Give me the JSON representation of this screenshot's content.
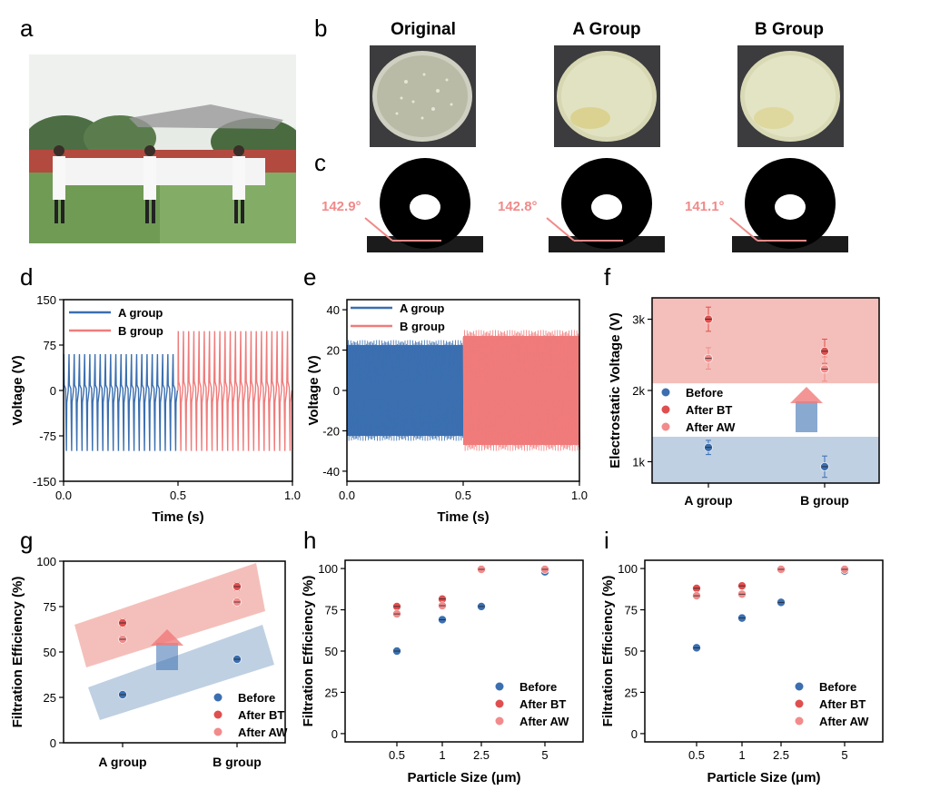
{
  "panels": {
    "a": "a",
    "b": "b",
    "c": "c",
    "d": "d",
    "e": "e",
    "f": "f",
    "g": "g",
    "h": "h",
    "i": "i"
  },
  "petri_titles": [
    "Original",
    "A Group",
    "B Group"
  ],
  "contact_angles": [
    "142.9°",
    "142.8°",
    "141.1°"
  ],
  "colors": {
    "blue": "#3b6fb0",
    "red": "#f07b7b",
    "blueBand": "#b8cbe0",
    "redBand": "#f3b8b2"
  },
  "chart_data": [
    {
      "id": "d",
      "type": "line",
      "xlabel": "Time (s)",
      "ylabel": "Voltage (V)",
      "xlim": [
        0,
        1
      ],
      "ylim": [
        -150,
        150
      ],
      "xticks": [
        "0.0",
        "0.5",
        "1.0"
      ],
      "yticks": [
        "150",
        "75",
        "0",
        "-75",
        "-150"
      ],
      "series": [
        {
          "name": "A group",
          "x_range": [
            0,
            0.5
          ],
          "peak_pos": 60,
          "peak_neg": -100,
          "cycles": 22
        },
        {
          "name": "B group",
          "x_range": [
            0.5,
            1.0
          ],
          "peak_pos": 98,
          "peak_neg": -100,
          "cycles": 22
        }
      ]
    },
    {
      "id": "e",
      "type": "line",
      "xlabel": "Time (s)",
      "ylabel": "Voltage (V)",
      "xlim": [
        0,
        1
      ],
      "ylim": [
        -45,
        45
      ],
      "xticks": [
        "0.0",
        "0.5",
        "1.0"
      ],
      "yticks": [
        "40",
        "20",
        "0",
        "-20",
        "-40"
      ],
      "series": [
        {
          "name": "A group",
          "x_range": [
            0,
            0.5
          ],
          "amplitude": 25
        },
        {
          "name": "B group",
          "x_range": [
            0.5,
            1.0
          ],
          "amplitude": 30
        }
      ]
    },
    {
      "id": "f",
      "type": "scatter",
      "xlabel": "",
      "ylabel": "Electrostatic Voltage (V)",
      "categories": [
        "A group",
        "B group"
      ],
      "ylim": [
        700,
        3300
      ],
      "yticks": [
        "3k",
        "2k",
        "1k"
      ],
      "series": [
        {
          "name": "Before",
          "values": [
            1200,
            930
          ],
          "errors": [
            100,
            150
          ]
        },
        {
          "name": "After BT",
          "values": [
            3000,
            2550
          ],
          "errors": [
            170,
            170
          ]
        },
        {
          "name": "After AW",
          "values": [
            2450,
            2300
          ],
          "errors": [
            150,
            170
          ]
        }
      ]
    },
    {
      "id": "g",
      "type": "scatter",
      "xlabel": "",
      "ylabel": "Filtration Efficiency (%)",
      "categories": [
        "A group",
        "B group"
      ],
      "ylim": [
        0,
        100
      ],
      "yticks": [
        "100",
        "75",
        "50",
        "25",
        "0"
      ],
      "series": [
        {
          "name": "Before",
          "values": [
            26.5,
            46
          ],
          "errors": [
            1,
            1
          ]
        },
        {
          "name": "After BT",
          "values": [
            66,
            86
          ],
          "errors": [
            2,
            2
          ]
        },
        {
          "name": "After AW",
          "values": [
            57,
            77.5
          ],
          "errors": [
            2,
            2
          ]
        }
      ]
    },
    {
      "id": "h",
      "type": "scatter",
      "xlabel": "Particle Size (μm)",
      "ylabel": "Filtration Efficiency (%)",
      "x": [
        "0.5",
        "1",
        "2.5",
        "5"
      ],
      "ylim": [
        -5,
        105
      ],
      "yticks": [
        "100",
        "75",
        "50",
        "25",
        "0"
      ],
      "series": [
        {
          "name": "Before",
          "values": [
            50,
            69,
            77,
            98
          ]
        },
        {
          "name": "After BT",
          "values": [
            77,
            81.5,
            99.5,
            99.5
          ]
        },
        {
          "name": "After AW",
          "values": [
            72.5,
            77.5,
            99.5,
            99.5
          ]
        }
      ]
    },
    {
      "id": "i",
      "type": "scatter",
      "xlabel": "Particle Size (μm)",
      "ylabel": "Filtration Efficiency (%)",
      "x": [
        "0.5",
        "1",
        "2.5",
        "5"
      ],
      "ylim": [
        -5,
        105
      ],
      "yticks": [
        "100",
        "75",
        "50",
        "25",
        "0"
      ],
      "series": [
        {
          "name": "Before",
          "values": [
            52,
            70,
            79.5,
            98.5
          ]
        },
        {
          "name": "After BT",
          "values": [
            88,
            89.5,
            99.5,
            99.5
          ]
        },
        {
          "name": "After AW",
          "values": [
            83.5,
            84.5,
            99.5,
            99.5
          ]
        }
      ]
    }
  ]
}
